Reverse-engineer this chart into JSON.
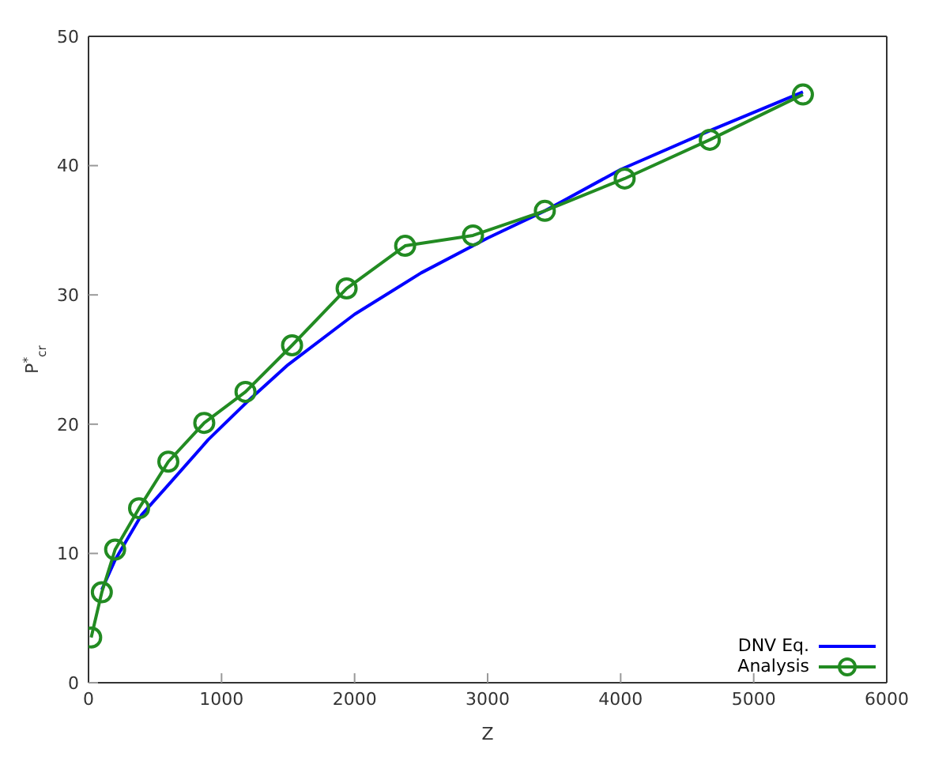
{
  "chart_data": {
    "type": "line",
    "xlabel": "Z",
    "ylabel": "P$^{*}$$_{cr}$",
    "xlim": [
      0,
      6000
    ],
    "ylim": [
      0,
      50
    ],
    "xticks": [
      0,
      1000,
      2000,
      3000,
      4000,
      5000,
      6000
    ],
    "yticks": [
      0,
      10,
      20,
      30,
      40,
      50
    ],
    "grid": false,
    "legend": "bottom right",
    "series": [
      {
        "name": "DNV Eq.",
        "color": "#0000ff",
        "marker": "none",
        "x": [
          100,
          200,
          400,
          600,
          900,
          1200,
          1500,
          2000,
          2500,
          3000,
          3430,
          4000,
          4670,
          5370
        ],
        "values": [
          7.2,
          9.5,
          13.0,
          15.3,
          18.8,
          21.8,
          24.6,
          28.5,
          31.7,
          34.4,
          36.5,
          39.7,
          42.7,
          45.7
        ]
      },
      {
        "name": "Analysis",
        "color": "#228b22",
        "marker": "circle",
        "x": [
          20,
          100,
          200,
          380,
          600,
          870,
          1180,
          1530,
          1940,
          2380,
          2890,
          3430,
          4030,
          4670,
          5370
        ],
        "values": [
          3.5,
          7.0,
          10.3,
          13.5,
          17.1,
          20.1,
          22.5,
          26.1,
          30.5,
          33.8,
          34.6,
          36.5,
          39.0,
          42.0,
          45.5
        ]
      }
    ]
  }
}
